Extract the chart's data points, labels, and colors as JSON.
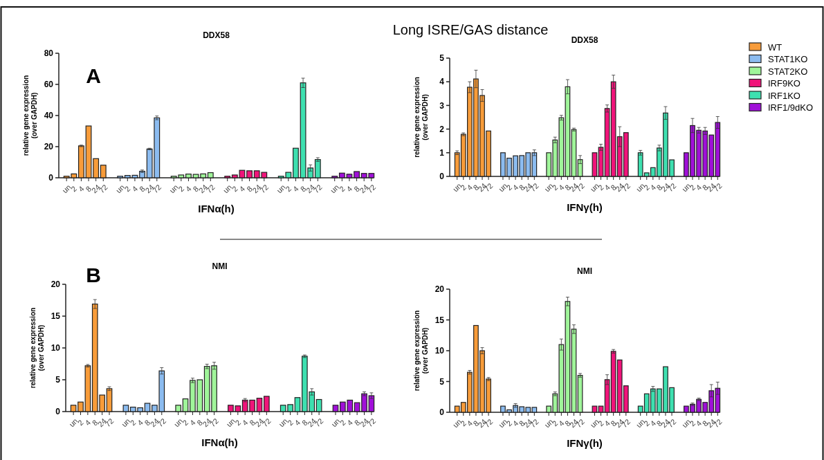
{
  "chart_data": [
    {
      "type": "bar",
      "title": "DDX58",
      "xlabel": "IFNα(h)",
      "ylabel": "relative gene expression\n(over GAPDH)",
      "annotations": [
        "Long ISRE/GAS distance",
        "A"
      ],
      "legend": false,
      "ylim": [
        0,
        80
      ],
      "yticks": [
        0,
        20,
        40,
        60,
        80
      ],
      "categories": [
        "un",
        "2",
        "4",
        "8",
        "24",
        "72",
        "un",
        "2",
        "4",
        "8",
        "24",
        "72",
        "un",
        "2",
        "4",
        "8",
        "24",
        "72",
        "un",
        "2",
        "4",
        "8",
        "24",
        "72",
        "un",
        "2",
        "4",
        "8",
        "24",
        "72",
        "un",
        "2",
        "4",
        "8",
        "24",
        "72"
      ],
      "series": [
        {
          "color": "#f89c3a",
          "values": [
            1,
            2.5,
            20.5,
            33.3,
            12.3,
            8.1,
            null,
            null,
            null,
            null,
            null,
            null,
            null,
            null,
            null,
            null,
            null,
            null,
            null,
            null,
            null,
            null,
            null,
            null,
            null,
            null,
            null,
            null,
            null,
            null,
            null,
            null,
            null,
            null,
            null,
            null
          ],
          "errors": [
            null,
            null,
            0.5,
            null,
            null,
            null,
            null,
            null,
            null,
            null,
            null,
            null,
            null,
            null,
            null,
            null,
            null,
            null,
            null,
            null,
            null,
            null,
            null,
            null,
            null,
            null,
            null,
            null,
            null,
            null,
            null,
            null,
            null,
            null,
            null,
            null
          ]
        },
        {
          "color": "#8cbcf0",
          "values": [
            null,
            null,
            null,
            null,
            null,
            null,
            1,
            1.5,
            1.6,
            4.2,
            18.5,
            38.5,
            null,
            null,
            null,
            null,
            null,
            null,
            null,
            null,
            null,
            null,
            null,
            null,
            null,
            null,
            null,
            null,
            null,
            null,
            null,
            null,
            null,
            null,
            null,
            null
          ],
          "errors": [
            null,
            null,
            null,
            null,
            null,
            null,
            null,
            null,
            null,
            0.8,
            0.5,
            1.2,
            null,
            null,
            null,
            null,
            null,
            null,
            null,
            null,
            null,
            null,
            null,
            null,
            null,
            null,
            null,
            null,
            null,
            null,
            null,
            null,
            null,
            null,
            null,
            null
          ]
        },
        {
          "color": "#a0f59a",
          "values": [
            null,
            null,
            null,
            null,
            null,
            null,
            null,
            null,
            null,
            null,
            null,
            null,
            1,
            1.8,
            2.4,
            2.2,
            2.5,
            3.3,
            null,
            null,
            null,
            null,
            null,
            null,
            null,
            null,
            null,
            null,
            null,
            null,
            null,
            null,
            null,
            null,
            null,
            null
          ]
        },
        {
          "color": "#f0147a",
          "values": [
            null,
            null,
            null,
            null,
            null,
            null,
            null,
            null,
            null,
            null,
            null,
            null,
            null,
            null,
            null,
            null,
            null,
            null,
            1,
            1.8,
            4.8,
            4.5,
            4.5,
            3.5,
            null,
            null,
            null,
            null,
            null,
            null,
            null,
            null,
            null,
            null,
            null,
            null
          ]
        },
        {
          "color": "#3ee0b0",
          "values": [
            null,
            null,
            null,
            null,
            null,
            null,
            null,
            null,
            null,
            null,
            null,
            null,
            null,
            null,
            null,
            null,
            null,
            null,
            null,
            null,
            null,
            null,
            null,
            null,
            1,
            3.5,
            19,
            61,
            6.3,
            11.7,
            null,
            null,
            null,
            null,
            null,
            null
          ],
          "errors": [
            null,
            null,
            null,
            null,
            null,
            null,
            null,
            null,
            null,
            null,
            null,
            null,
            null,
            null,
            null,
            null,
            null,
            null,
            null,
            null,
            null,
            null,
            null,
            null,
            null,
            null,
            null,
            3,
            2,
            1.2,
            null,
            null,
            null,
            null,
            null,
            null
          ]
        },
        {
          "color": "#a010d8",
          "values": [
            null,
            null,
            null,
            null,
            null,
            null,
            null,
            null,
            null,
            null,
            null,
            null,
            null,
            null,
            null,
            null,
            null,
            null,
            null,
            null,
            null,
            null,
            null,
            null,
            null,
            null,
            null,
            null,
            null,
            null,
            1,
            3,
            2.3,
            4,
            2.8,
            2.8
          ]
        }
      ]
    },
    {
      "type": "bar",
      "title": "DDX58",
      "xlabel": "IFNγ(h)",
      "ylabel": "relative gene expression\n(over GAPDH)",
      "legend": "right",
      "ylim": [
        0,
        5
      ],
      "yticks": [
        0,
        1,
        2,
        3,
        4,
        5
      ],
      "categories": [
        "un",
        "2",
        "4",
        "8",
        "24",
        "72",
        "un",
        "2",
        "4",
        "8",
        "24",
        "72",
        "un",
        "2",
        "4",
        "8",
        "24",
        "72",
        "un",
        "2",
        "4",
        "8",
        "24",
        "72",
        "un",
        "2",
        "4",
        "8",
        "24",
        "72",
        "un",
        "2",
        "4",
        "8",
        "24",
        "72"
      ],
      "series": [
        {
          "name": "WT",
          "color": "#f89c3a",
          "values": [
            1.0,
            1.78,
            3.77,
            4.12,
            3.42,
            1.92,
            null,
            null,
            null,
            null,
            null,
            null,
            null,
            null,
            null,
            null,
            null,
            null,
            null,
            null,
            null,
            null,
            null,
            null,
            null,
            null,
            null,
            null,
            null,
            null,
            null,
            null,
            null,
            null,
            null,
            null
          ],
          "errors": [
            0.08,
            0.06,
            0.23,
            0.37,
            0.25,
            null,
            null,
            null,
            null,
            null,
            null,
            null,
            null,
            null,
            null,
            null,
            null,
            null,
            null,
            null,
            null,
            null,
            null,
            null,
            null,
            null,
            null,
            null,
            null,
            null,
            null,
            null,
            null,
            null,
            null,
            null
          ]
        },
        {
          "name": "STAT1KO",
          "color": "#8cbcf0",
          "values": [
            null,
            null,
            null,
            null,
            null,
            null,
            1.0,
            0.77,
            0.87,
            0.88,
            1.0,
            1.0,
            null,
            null,
            null,
            null,
            null,
            null,
            null,
            null,
            null,
            null,
            null,
            null,
            null,
            null,
            null,
            null,
            null,
            null,
            null,
            null,
            null,
            null,
            null,
            null
          ],
          "errors": [
            null,
            null,
            null,
            null,
            null,
            null,
            null,
            null,
            null,
            null,
            null,
            0.12,
            null,
            null,
            null,
            null,
            null,
            null,
            null,
            null,
            null,
            null,
            null,
            null,
            null,
            null,
            null,
            null,
            null,
            null,
            null,
            null,
            null,
            null,
            null,
            null
          ]
        },
        {
          "name": "STAT2KO",
          "color": "#a0f59a",
          "values": [
            null,
            null,
            null,
            null,
            null,
            null,
            null,
            null,
            null,
            null,
            null,
            null,
            1.0,
            1.54,
            2.48,
            3.79,
            1.98,
            0.71,
            null,
            null,
            null,
            null,
            null,
            null,
            null,
            null,
            null,
            null,
            null,
            null,
            null,
            null,
            null,
            null,
            null,
            null
          ],
          "errors": [
            null,
            null,
            null,
            null,
            null,
            null,
            null,
            null,
            null,
            null,
            null,
            null,
            null,
            0.12,
            0.1,
            0.3,
            0.06,
            0.17,
            null,
            null,
            null,
            null,
            null,
            null,
            null,
            null,
            null,
            null,
            null,
            null,
            null,
            null,
            null,
            null,
            null,
            null
          ]
        },
        {
          "name": "IRF9KO",
          "color": "#f0147a",
          "values": [
            null,
            null,
            null,
            null,
            null,
            null,
            null,
            null,
            null,
            null,
            null,
            null,
            null,
            null,
            null,
            null,
            null,
            null,
            1.0,
            1.23,
            2.87,
            4.0,
            1.68,
            1.85,
            null,
            null,
            null,
            null,
            null,
            null,
            null,
            null,
            null,
            null,
            null,
            null
          ],
          "errors": [
            null,
            null,
            null,
            null,
            null,
            null,
            null,
            null,
            null,
            null,
            null,
            null,
            null,
            null,
            null,
            null,
            null,
            null,
            null,
            0.13,
            0.15,
            0.28,
            0.42,
            null,
            null,
            null,
            null,
            null,
            null,
            null,
            null,
            null,
            null,
            null,
            null,
            null
          ]
        },
        {
          "name": "IRF1KO",
          "color": "#3ee0b0",
          "values": [
            null,
            null,
            null,
            null,
            null,
            null,
            null,
            null,
            null,
            null,
            null,
            null,
            null,
            null,
            null,
            null,
            null,
            null,
            null,
            null,
            null,
            null,
            null,
            null,
            1.0,
            0.15,
            0.37,
            1.2,
            2.68,
            0.7,
            null,
            null,
            null,
            null,
            null,
            null
          ],
          "errors": [
            null,
            null,
            null,
            null,
            null,
            null,
            null,
            null,
            null,
            null,
            null,
            null,
            null,
            null,
            null,
            null,
            null,
            null,
            null,
            null,
            null,
            null,
            null,
            null,
            0.1,
            null,
            null,
            0.12,
            0.27,
            null,
            null,
            null,
            null,
            null,
            null,
            null
          ]
        },
        {
          "name": "IRF1/9dKO",
          "color": "#a010d8",
          "values": [
            null,
            null,
            null,
            null,
            null,
            null,
            null,
            null,
            null,
            null,
            null,
            null,
            null,
            null,
            null,
            null,
            null,
            null,
            null,
            null,
            null,
            null,
            null,
            null,
            null,
            null,
            null,
            null,
            null,
            null,
            1.0,
            2.15,
            1.95,
            1.92,
            1.75,
            2.28
          ],
          "errors": [
            null,
            null,
            null,
            null,
            null,
            null,
            null,
            null,
            null,
            null,
            null,
            null,
            null,
            null,
            null,
            null,
            null,
            null,
            null,
            null,
            null,
            null,
            null,
            null,
            null,
            null,
            null,
            null,
            null,
            null,
            null,
            0.3,
            0.12,
            0.15,
            null,
            0.25
          ]
        }
      ]
    },
    {
      "type": "bar",
      "title": "NMI",
      "xlabel": "IFNα(h)",
      "ylabel": "relative gene expression\n(over GAPDH)",
      "annotations": [
        "B"
      ],
      "legend": false,
      "ylim": [
        0,
        20
      ],
      "yticks": [
        0,
        5,
        10,
        15,
        20
      ],
      "categories": [
        "un",
        "2",
        "4",
        "8",
        "24",
        "72",
        "un",
        "2",
        "4",
        "8",
        "24",
        "72",
        "un",
        "2",
        "4",
        "8",
        "24",
        "72",
        "un",
        "2",
        "4",
        "8",
        "24",
        "72",
        "un",
        "2",
        "4",
        "8",
        "24",
        "72",
        "un",
        "2",
        "4",
        "8",
        "24",
        "72"
      ],
      "series": [
        {
          "color": "#f89c3a",
          "values": [
            1.0,
            1.5,
            7.2,
            16.9,
            2.6,
            3.6,
            null,
            null,
            null,
            null,
            null,
            null,
            null,
            null,
            null,
            null,
            null,
            null,
            null,
            null,
            null,
            null,
            null,
            null,
            null,
            null,
            null,
            null,
            null,
            null,
            null,
            null,
            null,
            null,
            null,
            null
          ],
          "errors": [
            null,
            null,
            0.2,
            0.7,
            null,
            0.3,
            null,
            null,
            null,
            null,
            null,
            null,
            null,
            null,
            null,
            null,
            null,
            null,
            null,
            null,
            null,
            null,
            null,
            null,
            null,
            null,
            null,
            null,
            null,
            null,
            null,
            null,
            null,
            null,
            null,
            null
          ]
        },
        {
          "color": "#8cbcf0",
          "values": [
            null,
            null,
            null,
            null,
            null,
            null,
            1.0,
            0.7,
            0.6,
            1.3,
            1.0,
            6.4,
            null,
            null,
            null,
            null,
            null,
            null,
            null,
            null,
            null,
            null,
            null,
            null,
            null,
            null,
            null,
            null,
            null,
            null,
            null,
            null,
            null,
            null,
            null,
            null
          ],
          "errors": [
            null,
            null,
            null,
            null,
            null,
            null,
            null,
            null,
            null,
            null,
            null,
            0.5,
            null,
            null,
            null,
            null,
            null,
            null,
            null,
            null,
            null,
            null,
            null,
            null,
            null,
            null,
            null,
            null,
            null,
            null,
            null,
            null,
            null,
            null,
            null,
            null
          ]
        },
        {
          "color": "#a0f59a",
          "values": [
            null,
            null,
            null,
            null,
            null,
            null,
            null,
            null,
            null,
            null,
            null,
            null,
            1.0,
            2.0,
            4.9,
            5.0,
            7.1,
            7.2,
            null,
            null,
            null,
            null,
            null,
            null,
            null,
            null,
            null,
            null,
            null,
            null,
            null,
            null,
            null,
            null,
            null,
            null
          ],
          "errors": [
            null,
            null,
            null,
            null,
            null,
            null,
            null,
            null,
            null,
            null,
            null,
            null,
            null,
            null,
            0.35,
            null,
            0.35,
            0.55,
            null,
            null,
            null,
            null,
            null,
            null,
            null,
            null,
            null,
            null,
            null,
            null,
            null,
            null,
            null,
            null,
            null,
            null
          ]
        },
        {
          "color": "#f0147a",
          "values": [
            null,
            null,
            null,
            null,
            null,
            null,
            null,
            null,
            null,
            null,
            null,
            null,
            null,
            null,
            null,
            null,
            null,
            null,
            1.0,
            0.9,
            1.8,
            1.8,
            2.1,
            2.4,
            null,
            null,
            null,
            null,
            null,
            null,
            null,
            null,
            null,
            null,
            null,
            null
          ],
          "errors": [
            null,
            null,
            null,
            null,
            null,
            null,
            null,
            null,
            null,
            null,
            null,
            null,
            null,
            null,
            null,
            null,
            null,
            null,
            null,
            null,
            0.25,
            null,
            null,
            null,
            null,
            null,
            null,
            null,
            null,
            null,
            null,
            null,
            null,
            null,
            null,
            null
          ]
        },
        {
          "color": "#3ee0b0",
          "values": [
            null,
            null,
            null,
            null,
            null,
            null,
            null,
            null,
            null,
            null,
            null,
            null,
            null,
            null,
            null,
            null,
            null,
            null,
            null,
            null,
            null,
            null,
            null,
            null,
            1.0,
            1.1,
            2.2,
            8.7,
            3.1,
            1.9,
            null,
            null,
            null,
            null,
            null,
            null
          ],
          "errors": [
            null,
            null,
            null,
            null,
            null,
            null,
            null,
            null,
            null,
            null,
            null,
            null,
            null,
            null,
            null,
            null,
            null,
            null,
            null,
            null,
            null,
            null,
            null,
            null,
            null,
            null,
            null,
            0.2,
            0.5,
            null,
            null,
            null,
            null,
            null,
            null,
            null
          ]
        },
        {
          "color": "#a010d8",
          "values": [
            null,
            null,
            null,
            null,
            null,
            null,
            null,
            null,
            null,
            null,
            null,
            null,
            null,
            null,
            null,
            null,
            null,
            null,
            null,
            null,
            null,
            null,
            null,
            null,
            null,
            null,
            null,
            null,
            null,
            null,
            1.0,
            1.5,
            1.8,
            1.4,
            2.8,
            2.5
          ],
          "errors": [
            null,
            null,
            null,
            null,
            null,
            null,
            null,
            null,
            null,
            null,
            null,
            null,
            null,
            null,
            null,
            null,
            null,
            null,
            null,
            null,
            null,
            null,
            null,
            null,
            null,
            null,
            null,
            null,
            null,
            null,
            null,
            null,
            null,
            null,
            0.3,
            0.45
          ]
        }
      ]
    },
    {
      "type": "bar",
      "title": "NMI",
      "xlabel": "IFNγ(h)",
      "ylabel": "relative gene expression\n(over GAPDH)",
      "legend": false,
      "ylim": [
        0,
        20
      ],
      "yticks": [
        0,
        5,
        10,
        15,
        20
      ],
      "categories": [
        "un",
        "2",
        "4",
        "8",
        "24",
        "72",
        "un",
        "2",
        "4",
        "8",
        "24",
        "72",
        "un",
        "2",
        "4",
        "8",
        "24",
        "72",
        "un",
        "2",
        "4",
        "8",
        "24",
        "72",
        "un",
        "2",
        "4",
        "8",
        "24",
        "72",
        "un",
        "2",
        "4",
        "8",
        "24",
        "72"
      ],
      "series": [
        {
          "color": "#f89c3a",
          "values": [
            1.0,
            1.6,
            6.5,
            14.1,
            10.0,
            5.4,
            null,
            null,
            null,
            null,
            null,
            null,
            null,
            null,
            null,
            null,
            null,
            null,
            null,
            null,
            null,
            null,
            null,
            null,
            null,
            null,
            null,
            null,
            null,
            null,
            null,
            null,
            null,
            null,
            null,
            null
          ],
          "errors": [
            null,
            null,
            0.3,
            null,
            0.5,
            0.25,
            null,
            null,
            null,
            null,
            null,
            null,
            null,
            null,
            null,
            null,
            null,
            null,
            null,
            null,
            null,
            null,
            null,
            null,
            null,
            null,
            null,
            null,
            null,
            null,
            null,
            null,
            null,
            null,
            null,
            null
          ]
        },
        {
          "color": "#8cbcf0",
          "values": [
            null,
            null,
            null,
            null,
            null,
            null,
            1.0,
            0.4,
            1.1,
            0.9,
            0.8,
            0.8,
            null,
            null,
            null,
            null,
            null,
            null,
            null,
            null,
            null,
            null,
            null,
            null,
            null,
            null,
            null,
            null,
            null,
            null,
            null,
            null,
            null,
            null,
            null,
            null
          ],
          "errors": [
            null,
            null,
            null,
            null,
            null,
            null,
            null,
            null,
            0.3,
            null,
            null,
            null,
            null,
            null,
            null,
            null,
            null,
            null,
            null,
            null,
            null,
            null,
            null,
            null,
            null,
            null,
            null,
            null,
            null,
            null,
            null,
            null,
            null,
            null,
            null,
            null
          ]
        },
        {
          "color": "#a0f59a",
          "values": [
            null,
            null,
            null,
            null,
            null,
            null,
            null,
            null,
            null,
            null,
            null,
            null,
            1.0,
            3.0,
            11.0,
            18.0,
            13.5,
            6.0,
            null,
            null,
            null,
            null,
            null,
            null,
            null,
            null,
            null,
            null,
            null,
            null,
            null,
            null,
            null,
            null,
            null,
            null
          ],
          "errors": [
            null,
            null,
            null,
            null,
            null,
            null,
            null,
            null,
            null,
            null,
            null,
            null,
            null,
            0.3,
            0.9,
            0.7,
            0.7,
            0.3,
            null,
            null,
            null,
            null,
            null,
            null,
            null,
            null,
            null,
            null,
            null,
            null,
            null,
            null,
            null,
            null,
            null,
            null
          ]
        },
        {
          "color": "#f0147a",
          "values": [
            null,
            null,
            null,
            null,
            null,
            null,
            null,
            null,
            null,
            null,
            null,
            null,
            null,
            null,
            null,
            null,
            null,
            null,
            1.0,
            1.0,
            5.3,
            9.9,
            8.5,
            4.3,
            null,
            null,
            null,
            null,
            null,
            null,
            null,
            null,
            null,
            null,
            null,
            null
          ],
          "errors": [
            null,
            null,
            null,
            null,
            null,
            null,
            null,
            null,
            null,
            null,
            null,
            null,
            null,
            null,
            null,
            null,
            null,
            null,
            null,
            null,
            0.8,
            0.3,
            null,
            null,
            null,
            null,
            null,
            null,
            null,
            null,
            null,
            null,
            null,
            null,
            null,
            null
          ]
        },
        {
          "color": "#3ee0b0",
          "values": [
            null,
            null,
            null,
            null,
            null,
            null,
            null,
            null,
            null,
            null,
            null,
            null,
            null,
            null,
            null,
            null,
            null,
            null,
            null,
            null,
            null,
            null,
            null,
            null,
            1.0,
            3.0,
            3.8,
            3.8,
            7.4,
            4.0,
            null,
            null,
            null,
            null,
            null,
            null
          ],
          "errors": [
            null,
            null,
            null,
            null,
            null,
            null,
            null,
            null,
            null,
            null,
            null,
            null,
            null,
            null,
            null,
            null,
            null,
            null,
            null,
            null,
            null,
            null,
            null,
            null,
            null,
            null,
            0.4,
            null,
            null,
            null,
            null,
            null,
            null,
            null,
            null,
            null
          ]
        },
        {
          "color": "#a010d8",
          "values": [
            null,
            null,
            null,
            null,
            null,
            null,
            null,
            null,
            null,
            null,
            null,
            null,
            null,
            null,
            null,
            null,
            null,
            null,
            null,
            null,
            null,
            null,
            null,
            null,
            null,
            null,
            null,
            null,
            null,
            null,
            1.0,
            1.3,
            2.1,
            1.6,
            3.5,
            3.9
          ],
          "errors": [
            null,
            null,
            null,
            null,
            null,
            null,
            null,
            null,
            null,
            null,
            null,
            null,
            null,
            null,
            null,
            null,
            null,
            null,
            null,
            null,
            null,
            null,
            null,
            null,
            null,
            null,
            null,
            null,
            null,
            null,
            null,
            0.2,
            0.2,
            null,
            1.0,
            1.0
          ]
        }
      ]
    }
  ]
}
